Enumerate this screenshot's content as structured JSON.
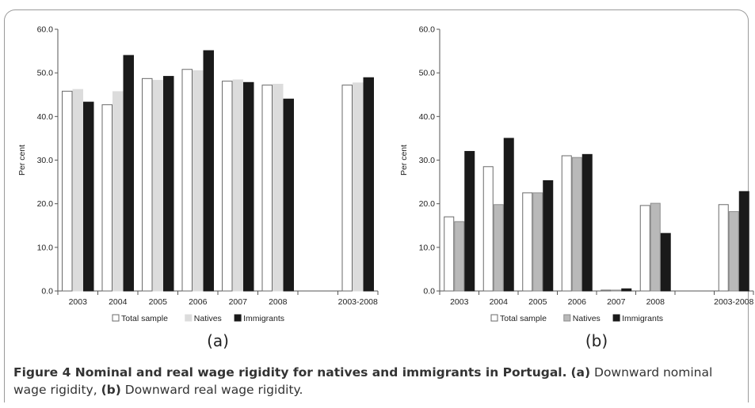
{
  "colors": {
    "total_sample": "#ffffff",
    "natives_a": "#dcdcdc",
    "natives_b": "#b9b9b9",
    "immigrants": "#1a1a1a",
    "outline": "#6a6a6a",
    "frame": "#9a9a9a",
    "caption_text": "#333333"
  },
  "chart_data": [
    {
      "type": "bar",
      "panel_label": "(a)",
      "categories": [
        "2003",
        "2004",
        "2005",
        "2006",
        "2007",
        "2008",
        "",
        "2003-2008"
      ],
      "series": [
        {
          "name": "Total sample",
          "values": [
            45.8,
            42.7,
            48.7,
            50.8,
            48.1,
            47.2,
            null,
            47.2
          ]
        },
        {
          "name": "Natives",
          "values": [
            46.2,
            45.7,
            48.3,
            50.5,
            48.4,
            47.4,
            null,
            47.7
          ]
        },
        {
          "name": "Immigrants",
          "values": [
            43.3,
            54.0,
            49.2,
            55.1,
            47.8,
            44.0,
            null,
            48.9
          ]
        }
      ],
      "ylabel": "Per cent",
      "ylim": [
        0,
        60
      ],
      "yticks": [
        "0.0",
        "10.0",
        "20.0",
        "30.0",
        "40.0",
        "50.0",
        "60.0"
      ],
      "grid": false,
      "legend": "bottom"
    },
    {
      "type": "bar",
      "panel_label": "(b)",
      "categories": [
        "2003",
        "2004",
        "2005",
        "2006",
        "2007",
        "2008",
        "",
        "2003-2008"
      ],
      "series": [
        {
          "name": "Total sample",
          "values": [
            17.0,
            28.5,
            22.5,
            31.0,
            0.2,
            19.6,
            null,
            19.8
          ]
        },
        {
          "name": "Natives",
          "values": [
            15.9,
            19.8,
            22.5,
            30.6,
            0.2,
            20.1,
            null,
            18.2
          ]
        },
        {
          "name": "Immigrants",
          "values": [
            32.0,
            35.0,
            25.3,
            31.3,
            0.5,
            13.2,
            null,
            22.8
          ]
        }
      ],
      "ylabel": "Per cent",
      "ylim": [
        0,
        60
      ],
      "yticks": [
        "0.0",
        "10.0",
        "20.0",
        "30.0",
        "40.0",
        "50.0",
        "60.0"
      ],
      "grid": false,
      "legend": "bottom"
    }
  ],
  "caption": {
    "lead": "Figure 4 Nominal and real wage rigidity for natives and immigrants in Portugal.",
    "a_tag": "(a)",
    "a_text": " Downward nominal wage rigidity, ",
    "b_tag": "(b)",
    "b_text": " Downward real wage rigidity."
  }
}
